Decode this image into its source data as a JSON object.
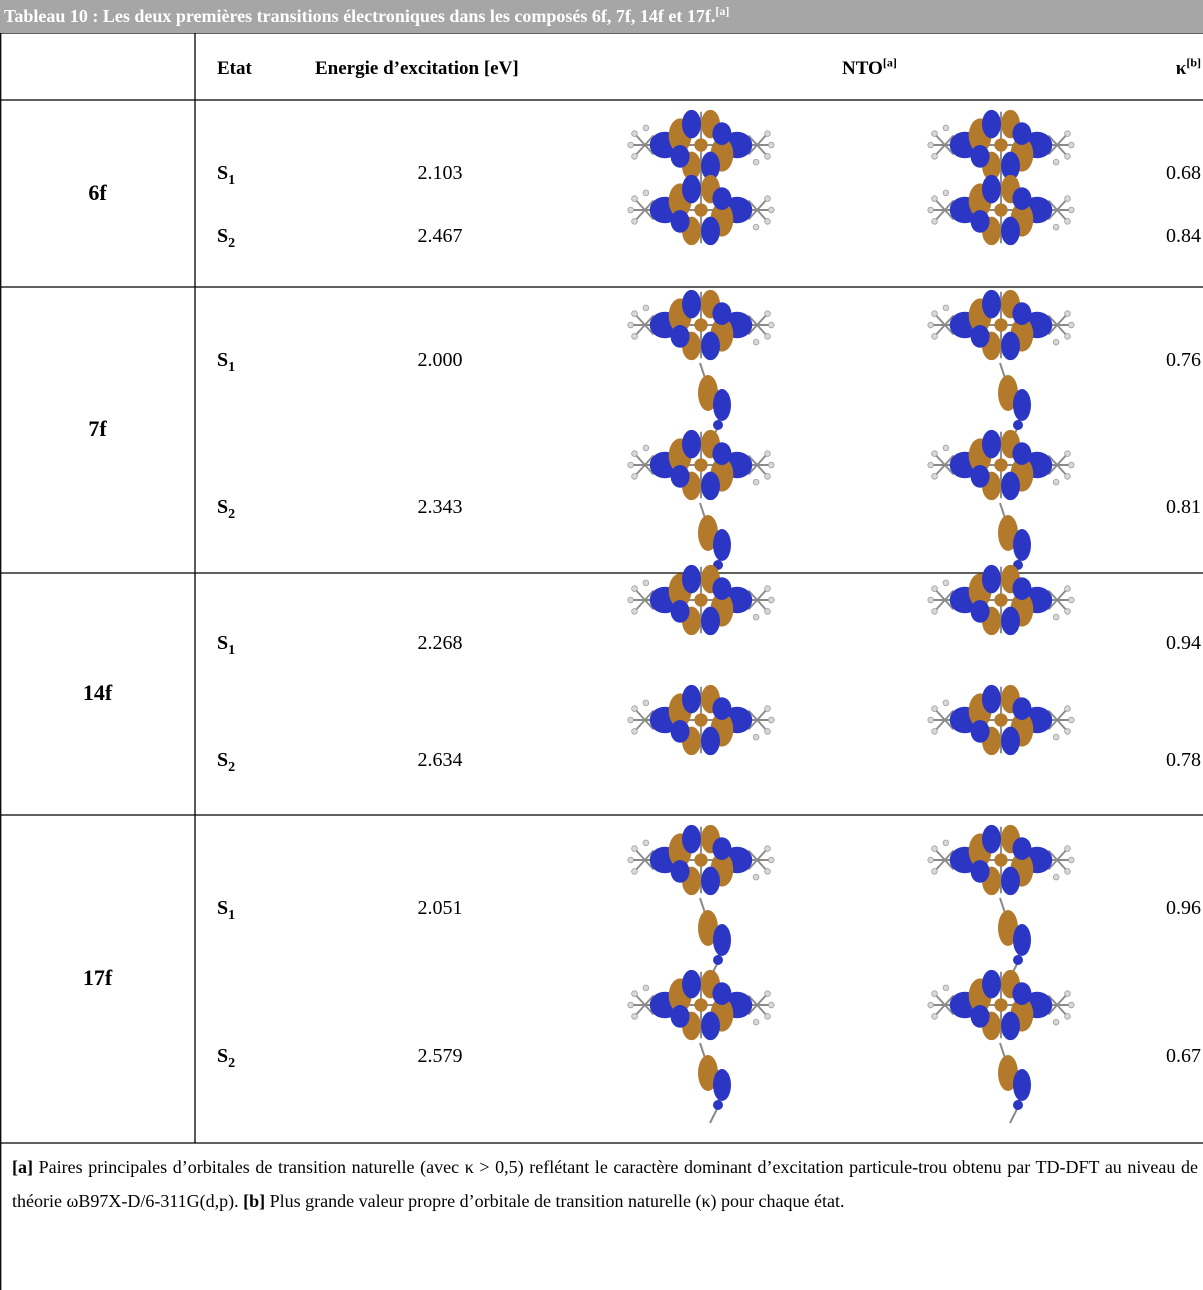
{
  "caption": {
    "text": "Tableau 10 : Les deux premières transitions électroniques dans les composés 6f, 7f, 14f et 17f.",
    "sup": "[a]"
  },
  "table": {
    "headers": [
      {
        "text": "Etat"
      },
      {
        "text": "Energie d’excitation [eV]"
      },
      {
        "text": "NTO",
        "sup": "[a]"
      },
      {
        "text": "κ",
        "sup": "[b]"
      }
    ],
    "rows": [
      {
        "name": "6f",
        "states": [
          {
            "state": "S",
            "sub": "1",
            "energy": "2.103",
            "kappa": "0.68"
          },
          {
            "state": "S",
            "sub": "2",
            "energy": "2.467",
            "kappa": "0.84"
          }
        ]
      },
      {
        "name": "7f",
        "states": [
          {
            "state": "S",
            "sub": "1",
            "energy": "2.000",
            "kappa": "0.76"
          },
          {
            "state": "S",
            "sub": "2",
            "energy": "2.343",
            "kappa": "0.81"
          }
        ]
      },
      {
        "name": "14f",
        "states": [
          {
            "state": "S",
            "sub": "1",
            "energy": "2.268",
            "kappa": "0.94"
          },
          {
            "state": "S",
            "sub": "2",
            "energy": "2.634",
            "kappa": "0.78"
          }
        ]
      },
      {
        "name": "17f",
        "states": [
          {
            "state": "S",
            "sub": "1",
            "energy": "2.051",
            "kappa": "0.96"
          },
          {
            "state": "S",
            "sub": "2",
            "energy": "2.579",
            "kappa": "0.67"
          }
        ]
      }
    ]
  },
  "footnote": [
    {
      "label": "[a]",
      "text": " Paires principales d’orbitales de transition naturelle (avec κ > 0,5) reflétant le caractère dominant d’excitation particule-trou obtenu par TD-DFT au niveau de théorie ωB97X-D/6-311G(d,p). "
    },
    {
      "label": "[b]",
      "text": " Plus grande valeur propre d’orbitale de transition naturelle (κ) pour chaque état."
    }
  ]
}
